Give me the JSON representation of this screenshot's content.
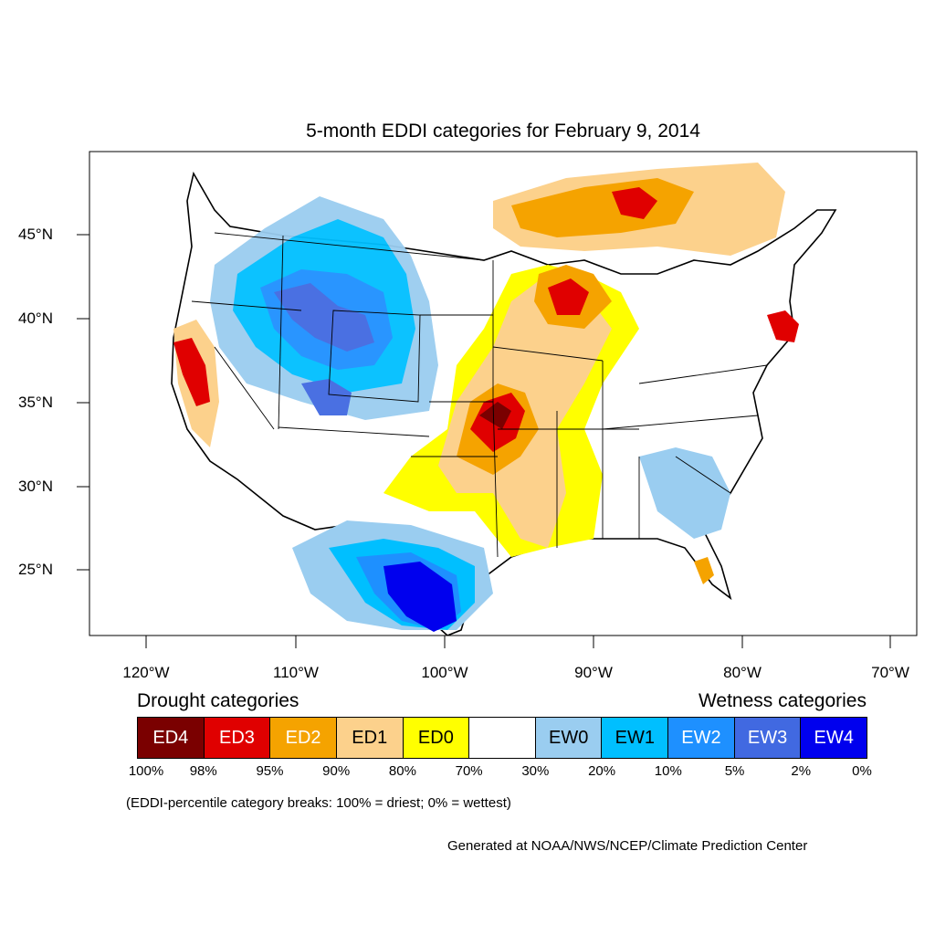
{
  "title": "5-month EDDI categories for February 9, 2014",
  "lat_labels": [
    "45°N",
    "40°N",
    "35°N",
    "30°N",
    "25°N"
  ],
  "lon_labels": [
    "120°W",
    "110°W",
    "100°W",
    "90°W",
    "80°W",
    "70°W"
  ],
  "legend": {
    "drought_heading": "Drought categories",
    "wetness_heading": "Wetness categories",
    "categories": [
      {
        "label": "ED4",
        "color": "#7a0000",
        "text_color": "#ffffff"
      },
      {
        "label": "ED3",
        "color": "#e00000",
        "text_color": "#ffffff"
      },
      {
        "label": "ED2",
        "color": "#f5a300",
        "text_color": "#ffffff"
      },
      {
        "label": "ED1",
        "color": "#fcd18c",
        "text_color": "#000000"
      },
      {
        "label": "ED0",
        "color": "#ffff00",
        "text_color": "#000000"
      },
      {
        "label": "",
        "color": "#ffffff",
        "text_color": "#000000"
      },
      {
        "label": "EW0",
        "color": "#9acdf0",
        "text_color": "#000000"
      },
      {
        "label": "EW1",
        "color": "#00bfff",
        "text_color": "#000000"
      },
      {
        "label": "EW2",
        "color": "#1e90ff",
        "text_color": "#ffffff"
      },
      {
        "label": "EW3",
        "color": "#4169e1",
        "text_color": "#ffffff"
      },
      {
        "label": "EW4",
        "color": "#0000ee",
        "text_color": "#ffffff"
      }
    ],
    "percent_breaks": [
      "100%",
      "98%",
      "95%",
      "90%",
      "80%",
      "70%",
      "30%",
      "20%",
      "10%",
      "5%",
      "2%",
      "0%"
    ]
  },
  "note": "(EDDI-percentile category breaks: 100% = driest; 0% = wettest)",
  "credit": "Generated at NOAA/NWS/NCEP/Climate Prediction Center"
}
